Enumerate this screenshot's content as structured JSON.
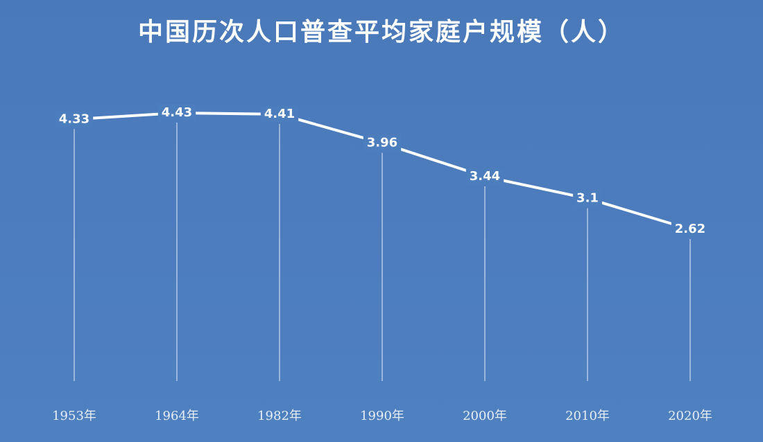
{
  "chart_data": {
    "type": "line",
    "title": "中国历次人口普查平均家庭户规模（人）",
    "categories": [
      "1953年",
      "1964年",
      "1982年",
      "1990年",
      "2000年",
      "2010年",
      "2020年"
    ],
    "values": [
      4.33,
      4.43,
      4.41,
      3.96,
      3.44,
      3.1,
      2.62
    ],
    "color": "#ffffff"
  }
}
